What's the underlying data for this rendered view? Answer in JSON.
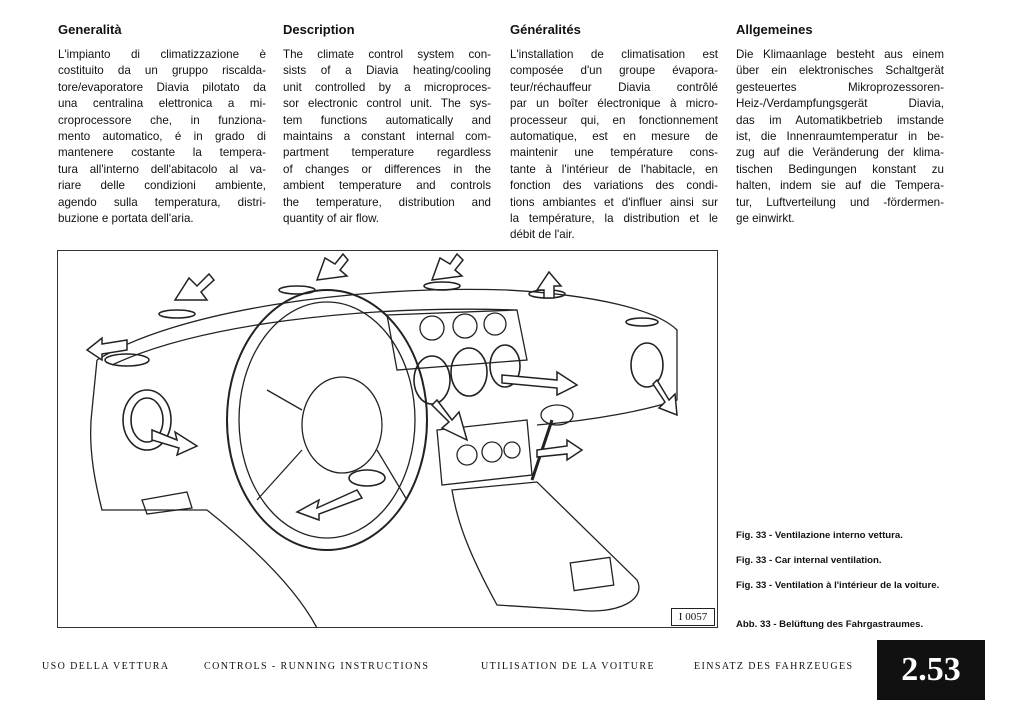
{
  "columns": [
    {
      "heading": "Generalità",
      "body": [
        "L'impianto di climatizzazione è",
        "costituito da un gruppo riscalda-",
        "tore/evaporatore Diavia pilotato da",
        "una centralina elettronica a mi-",
        "croprocessore che, in funziona-",
        "mento automatico, é in grado di",
        "mantenere costante la tempera-",
        "tura all'interno dell'abitacolo al va-",
        "riare delle condizioni ambiente,",
        "agendo sulla temperatura, distri-",
        "buzione e portata dell'aria."
      ]
    },
    {
      "heading": "Description",
      "body": [
        "The climate control system con-",
        "sists of a Diavia heating/cooling",
        "unit controlled by a microproces-",
        "sor electronic control unit. The sys-",
        "tem functions automatically and",
        "maintains a constant internal com-",
        "partment temperature regardless",
        "of changes or differences in the",
        "ambient temperature and controls",
        "the temperature, distribution and",
        "quantity of air flow."
      ]
    },
    {
      "heading": "Généralités",
      "body": [
        "L'installation de climatisation est",
        "composée d'un groupe évapora-",
        "teur/réchauffeur Diavia contrôlé",
        "par un boîter électronique à micro-",
        "processeur qui, en fonctionnement",
        "automatique, est en mesure de",
        "maintenir une température cons-",
        "tante à l'intérieur de l'habitacle, en",
        "fonction des variations des condi-",
        "tions ambiantes et d'influer ainsi sur",
        "la température, la distribution et le",
        "débit de l'air."
      ]
    },
    {
      "heading": "Allgemeines",
      "body": [
        "Die Klimaanlage besteht aus einem",
        "über ein elektronisches Schaltgerät",
        "gesteuertes Mikroprozessoren-",
        "Heiz-/Verdampfungsgerät Diavia,",
        "das im Automatikbetrieb imstande",
        "ist, die Innenraumtemperatur in be-",
        "zug auf die Veränderung der klima-",
        "tischen Bedingungen konstant zu",
        "halten, indem sie auf die Tempera-",
        "tur, Luftverteilung und -fördermen-",
        "ge einwirkt."
      ]
    }
  ],
  "figure": {
    "code": "I 0057"
  },
  "captions": [
    "Fig. 33 - Ventilazione interno vettura.",
    "Fig. 33 - Car internal ventilation.",
    "Fig. 33 - Ventilation à l'intérieur de la voiture.",
    "Abb. 33 - Belüftung des Fahrgastraumes."
  ],
  "footer": {
    "sections": [
      "USO DELLA VETTURA",
      "CONTROLS - RUNNING INSTRUCTIONS",
      "UTILISATION DE LA VOITURE",
      "EINSATZ DES FAHRZEUGES"
    ],
    "page_number": "2.53"
  }
}
